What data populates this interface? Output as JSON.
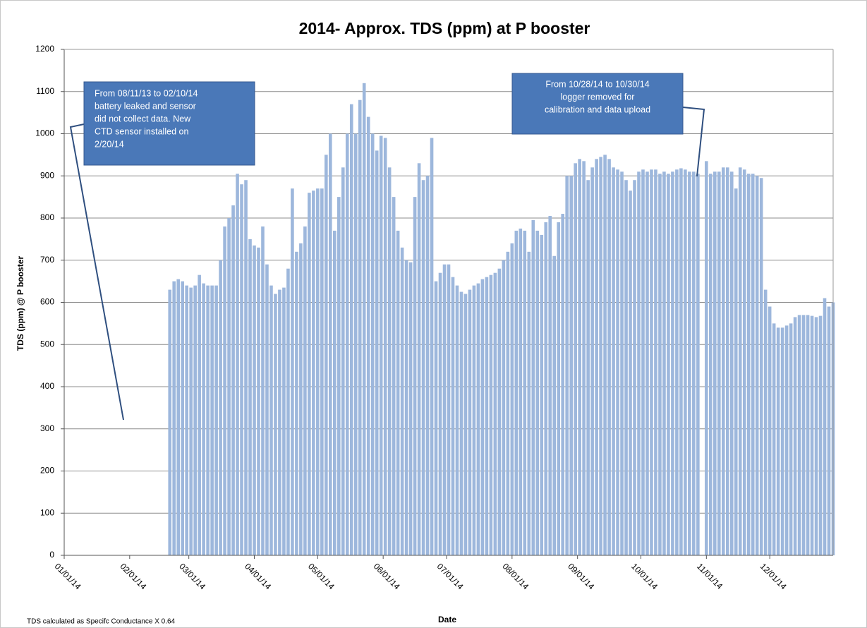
{
  "chart_data": {
    "type": "bar",
    "title": "2014- Approx. TDS (ppm) at P booster",
    "x_label": "Date",
    "y_label": "TDS  (ppm) @ P booster",
    "footnote": "TDS calculated as Specifc Conductance X 0.64",
    "color": "#9db7dc",
    "grid": true,
    "xlim": [
      "01/01/14",
      "12/31/14"
    ],
    "xticks": [
      "01/01/14",
      "02/01/14",
      "03/01/14",
      "04/01/14",
      "05/01/14",
      "06/01/14",
      "07/01/14",
      "08/01/14",
      "09/01/14",
      "10/01/14",
      "11/01/14",
      "12/01/14"
    ],
    "ylim": [
      0,
      1200
    ],
    "yticks": [
      0,
      100,
      200,
      300,
      400,
      500,
      600,
      700,
      800,
      900,
      1000,
      1100,
      1200
    ],
    "annotations": [
      {
        "lines": [
          "From  08/11/13 to 02/10/14",
          "battery leaked and sensor",
          "did not collect data. New",
          "CTD sensor installed on",
          "2/20/14"
        ]
      },
      {
        "lines": [
          "From  10/28/14 to 10/30/14",
          "logger removed for",
          "calibration and  data upload"
        ]
      }
    ],
    "x": [
      "02/20/14",
      "02/22/14",
      "02/24/14",
      "02/26/14",
      "02/28/14",
      "03/02/14",
      "03/04/14",
      "03/06/14",
      "03/08/14",
      "03/10/14",
      "03/12/14",
      "03/14/14",
      "03/16/14",
      "03/18/14",
      "03/20/14",
      "03/22/14",
      "03/24/14",
      "03/26/14",
      "03/28/14",
      "03/30/14",
      "04/01/14",
      "04/03/14",
      "04/05/14",
      "04/07/14",
      "04/09/14",
      "04/11/14",
      "04/13/14",
      "04/15/14",
      "04/17/14",
      "04/19/14",
      "04/21/14",
      "04/23/14",
      "04/25/14",
      "04/27/14",
      "04/29/14",
      "05/01/14",
      "05/03/14",
      "05/05/14",
      "05/07/14",
      "05/09/14",
      "05/11/14",
      "05/13/14",
      "05/15/14",
      "05/17/14",
      "05/19/14",
      "05/21/14",
      "05/23/14",
      "05/25/14",
      "05/27/14",
      "05/29/14",
      "05/31/14",
      "06/02/14",
      "06/04/14",
      "06/06/14",
      "06/08/14",
      "06/10/14",
      "06/12/14",
      "06/14/14",
      "06/16/14",
      "06/18/14",
      "06/20/14",
      "06/22/14",
      "06/24/14",
      "06/26/14",
      "06/28/14",
      "06/30/14",
      "07/02/14",
      "07/04/14",
      "07/06/14",
      "07/08/14",
      "07/10/14",
      "07/12/14",
      "07/14/14",
      "07/16/14",
      "07/18/14",
      "07/20/14",
      "07/22/14",
      "07/24/14",
      "07/26/14",
      "07/28/14",
      "07/30/14",
      "08/01/14",
      "08/03/14",
      "08/05/14",
      "08/07/14",
      "08/09/14",
      "08/11/14",
      "08/13/14",
      "08/15/14",
      "08/17/14",
      "08/19/14",
      "08/21/14",
      "08/23/14",
      "08/25/14",
      "08/27/14",
      "08/29/14",
      "08/31/14",
      "09/02/14",
      "09/04/14",
      "09/06/14",
      "09/08/14",
      "09/10/14",
      "09/12/14",
      "09/14/14",
      "09/16/14",
      "09/18/14",
      "09/20/14",
      "09/22/14",
      "09/24/14",
      "09/26/14",
      "09/28/14",
      "09/30/14",
      "10/02/14",
      "10/04/14",
      "10/06/14",
      "10/08/14",
      "10/10/14",
      "10/12/14",
      "10/14/14",
      "10/16/14",
      "10/18/14",
      "10/20/14",
      "10/22/14",
      "10/24/14",
      "10/26/14",
      "10/28/14",
      "10/30/14",
      "11/01/14",
      "11/03/14",
      "11/05/14",
      "11/07/14",
      "11/09/14",
      "11/11/14",
      "11/13/14",
      "11/15/14",
      "11/17/14",
      "11/19/14",
      "11/21/14",
      "11/23/14",
      "11/25/14",
      "11/27/14",
      "11/29/14",
      "12/01/14",
      "12/03/14",
      "12/05/14",
      "12/07/14",
      "12/09/14",
      "12/11/14",
      "12/13/14",
      "12/15/14",
      "12/17/14",
      "12/19/14",
      "12/21/14",
      "12/23/14",
      "12/25/14",
      "12/27/14",
      "12/29/14",
      "12/31/14"
    ],
    "values": [
      630,
      650,
      655,
      650,
      640,
      635,
      640,
      665,
      645,
      640,
      640,
      640,
      700,
      780,
      800,
      830,
      905,
      880,
      890,
      750,
      735,
      730,
      780,
      690,
      640,
      620,
      630,
      635,
      680,
      870,
      720,
      740,
      780,
      860,
      865,
      870,
      870,
      950,
      1000,
      770,
      850,
      920,
      1000,
      1070,
      1000,
      1080,
      1120,
      1040,
      1000,
      960,
      995,
      990,
      920,
      850,
      770,
      730,
      700,
      695,
      850,
      930,
      890,
      900,
      990,
      650,
      670,
      690,
      690,
      660,
      640,
      625,
      620,
      630,
      640,
      645,
      655,
      660,
      665,
      670,
      680,
      700,
      720,
      740,
      770,
      775,
      770,
      720,
      795,
      770,
      760,
      790,
      805,
      710,
      790,
      810,
      900,
      900,
      930,
      940,
      935,
      890,
      920,
      940,
      945,
      950,
      940,
      920,
      915,
      910,
      890,
      865,
      890,
      910,
      915,
      910,
      915,
      915,
      905,
      910,
      905,
      910,
      915,
      918,
      915,
      910,
      910,
      905,
      null,
      935,
      905,
      910,
      910,
      920,
      920,
      910,
      870,
      920,
      915,
      905,
      905,
      900,
      895,
      630,
      590,
      550,
      540,
      540,
      545,
      550,
      565,
      570,
      570,
      570,
      568,
      565,
      568,
      610,
      590,
      600
    ]
  }
}
